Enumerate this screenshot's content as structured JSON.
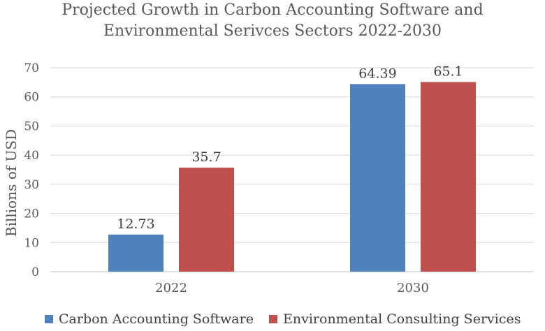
{
  "chart_data": {
    "type": "bar",
    "title_line1": "Projected Growth in Carbon Accounting Software and",
    "title_line2": "Environmental Serivces Sectors 2022-2030",
    "ylabel": "Billions of USD",
    "xlabel": "",
    "ylim": [
      0,
      70
    ],
    "yticks": [
      0,
      10,
      20,
      30,
      40,
      50,
      60,
      70
    ],
    "categories": [
      "2022",
      "2030"
    ],
    "series": [
      {
        "name": "Carbon Accounting Software",
        "color": "#4F81BD",
        "values": [
          12.73,
          64.39
        ],
        "labels": [
          "12.73",
          "64.39"
        ]
      },
      {
        "name": "Environmental Consulting Services",
        "color": "#C0504D",
        "values": [
          35.7,
          65.1
        ],
        "labels": [
          "35.7",
          "65.1"
        ]
      }
    ],
    "legend_position": "bottom",
    "gridlines": true
  }
}
